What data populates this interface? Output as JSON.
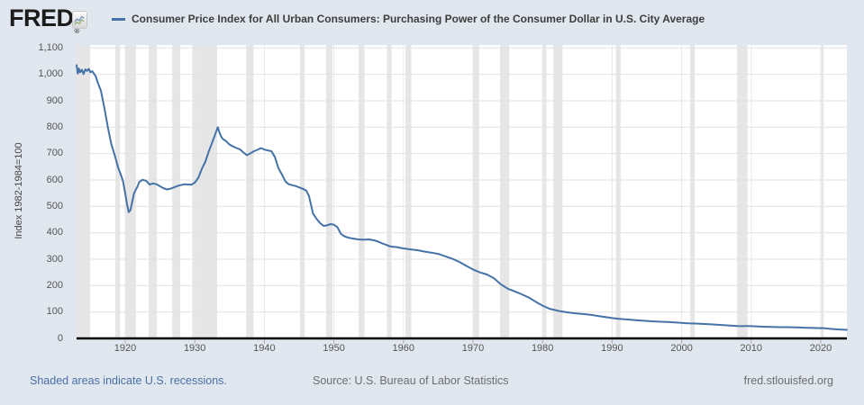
{
  "header": {
    "brand": "FRED",
    "brand_registered": "®",
    "legend_color": "#4572a7"
  },
  "footer": {
    "recession_note": "Shaded areas indicate U.S. recessions.",
    "source": "Source: U.S. Bureau of Labor Statistics",
    "site": "fred.stlouisfed.org"
  },
  "colors": {
    "background": "#e0e7ee",
    "plot_background": "#ffffff",
    "line": "#4572a7",
    "recession_band": "#e6e6e6",
    "gridline_h": "#e2e2e2",
    "gridline_v": "#e9e9e9",
    "axis": "#000000",
    "tick_mark": "#adadad"
  },
  "chart_data": {
    "type": "line",
    "title": "Consumer Price Index for All Urban Consumers: Purchasing Power of the Consumer Dollar in U.S. City Average",
    "xlabel": "",
    "ylabel": "Index 1982-1984=100",
    "ylim": [
      0,
      1100
    ],
    "xlim": [
      1913,
      2023.75
    ],
    "grid": true,
    "legend_position": "top",
    "y_tick_values": [
      0,
      100,
      200,
      300,
      400,
      500,
      600,
      700,
      800,
      900,
      1000,
      1100
    ],
    "y_tick_labels": [
      "0",
      "100",
      "200",
      "300",
      "400",
      "500",
      "600",
      "700",
      "800",
      "900",
      "1,000",
      "1,100"
    ],
    "x_tick_values": [
      1920,
      1930,
      1940,
      1950,
      1960,
      1970,
      1980,
      1990,
      2000,
      2010,
      2020
    ],
    "x_tick_labels": [
      "1920",
      "1930",
      "1940",
      "1950",
      "1960",
      "1970",
      "1980",
      "1990",
      "2000",
      "2010",
      "2020"
    ],
    "recessions": [
      [
        1913.0,
        1914.96
      ],
      [
        1918.58,
        1919.25
      ],
      [
        1920.0,
        1921.54
      ],
      [
        1923.38,
        1924.54
      ],
      [
        1926.75,
        1927.88
      ],
      [
        1929.63,
        1933.21
      ],
      [
        1937.38,
        1938.46
      ],
      [
        1945.13,
        1945.79
      ],
      [
        1948.88,
        1949.79
      ],
      [
        1953.54,
        1954.38
      ],
      [
        1957.63,
        1958.29
      ],
      [
        1960.29,
        1961.13
      ],
      [
        1969.96,
        1970.88
      ],
      [
        1973.88,
        1975.21
      ],
      [
        1980.04,
        1980.54
      ],
      [
        1981.54,
        1982.88
      ],
      [
        1990.54,
        1991.21
      ],
      [
        2001.21,
        2001.88
      ],
      [
        2007.96,
        2009.46
      ],
      [
        2020.08,
        2020.42
      ]
    ],
    "series": [
      {
        "name": "Consumer Price Index for All Urban Consumers: Purchasing Power of the Consumer Dollar in U.S. City Average",
        "color": "#4572a7",
        "points": [
          [
            1913.0,
            1035
          ],
          [
            1913.17,
            1003
          ],
          [
            1913.33,
            1022
          ],
          [
            1913.5,
            1008
          ],
          [
            1913.75,
            1018
          ],
          [
            1914.0,
            1001
          ],
          [
            1914.25,
            1019
          ],
          [
            1914.5,
            1013
          ],
          [
            1914.75,
            1021
          ],
          [
            1915.0,
            1008
          ],
          [
            1915.25,
            1012
          ],
          [
            1915.5,
            1003
          ],
          [
            1915.75,
            993
          ],
          [
            1916.0,
            972
          ],
          [
            1916.5,
            938
          ],
          [
            1917.0,
            872
          ],
          [
            1917.5,
            800
          ],
          [
            1918.0,
            735
          ],
          [
            1918.5,
            692
          ],
          [
            1919.0,
            645
          ],
          [
            1919.33,
            622
          ],
          [
            1919.67,
            596
          ],
          [
            1920.0,
            549
          ],
          [
            1920.25,
            508
          ],
          [
            1920.5,
            478
          ],
          [
            1920.75,
            486
          ],
          [
            1921.0,
            518
          ],
          [
            1921.25,
            549
          ],
          [
            1921.5,
            562
          ],
          [
            1921.75,
            575
          ],
          [
            1922.0,
            592
          ],
          [
            1922.5,
            601
          ],
          [
            1923.0,
            597
          ],
          [
            1923.5,
            583
          ],
          [
            1924.0,
            587
          ],
          [
            1924.5,
            584
          ],
          [
            1925.0,
            576
          ],
          [
            1925.5,
            569
          ],
          [
            1926.0,
            564
          ],
          [
            1926.5,
            567
          ],
          [
            1927.0,
            572
          ],
          [
            1927.5,
            577
          ],
          [
            1928.0,
            581
          ],
          [
            1928.5,
            584
          ],
          [
            1929.0,
            583
          ],
          [
            1929.5,
            582
          ],
          [
            1930.0,
            590
          ],
          [
            1930.5,
            608
          ],
          [
            1931.0,
            642
          ],
          [
            1931.5,
            668
          ],
          [
            1932.0,
            708
          ],
          [
            1932.5,
            742
          ],
          [
            1933.0,
            778
          ],
          [
            1933.3,
            800
          ],
          [
            1933.5,
            783
          ],
          [
            1933.75,
            766
          ],
          [
            1934.0,
            756
          ],
          [
            1934.5,
            747
          ],
          [
            1935.0,
            734
          ],
          [
            1935.5,
            727
          ],
          [
            1936.0,
            721
          ],
          [
            1936.5,
            716
          ],
          [
            1937.0,
            704
          ],
          [
            1937.5,
            694
          ],
          [
            1938.0,
            701
          ],
          [
            1938.5,
            709
          ],
          [
            1939.0,
            714
          ],
          [
            1939.5,
            721
          ],
          [
            1940.0,
            715
          ],
          [
            1940.5,
            712
          ],
          [
            1941.0,
            709
          ],
          [
            1941.5,
            688
          ],
          [
            1942.0,
            646
          ],
          [
            1942.5,
            622
          ],
          [
            1943.0,
            596
          ],
          [
            1943.25,
            589
          ],
          [
            1943.5,
            584
          ],
          [
            1944.0,
            580
          ],
          [
            1944.5,
            577
          ],
          [
            1945.0,
            572
          ],
          [
            1945.5,
            567
          ],
          [
            1946.0,
            560
          ],
          [
            1946.4,
            540
          ],
          [
            1946.75,
            500
          ],
          [
            1947.0,
            472
          ],
          [
            1947.5,
            453
          ],
          [
            1948.0,
            437
          ],
          [
            1948.5,
            426
          ],
          [
            1949.0,
            428
          ],
          [
            1949.5,
            433
          ],
          [
            1950.0,
            431
          ],
          [
            1950.5,
            421
          ],
          [
            1951.0,
            396
          ],
          [
            1951.5,
            387
          ],
          [
            1952.0,
            382
          ],
          [
            1952.5,
            379
          ],
          [
            1953.0,
            377
          ],
          [
            1953.5,
            375
          ],
          [
            1954.0,
            374
          ],
          [
            1954.5,
            374
          ],
          [
            1955.0,
            375
          ],
          [
            1955.5,
            373
          ],
          [
            1956.0,
            370
          ],
          [
            1956.5,
            365
          ],
          [
            1957.0,
            359
          ],
          [
            1957.5,
            355
          ],
          [
            1958.0,
            349
          ],
          [
            1958.5,
            347
          ],
          [
            1959.0,
            346
          ],
          [
            1959.5,
            343
          ],
          [
            1960.0,
            341
          ],
          [
            1961.0,
            337
          ],
          [
            1962.0,
            334
          ],
          [
            1963.0,
            329
          ],
          [
            1964.0,
            325
          ],
          [
            1965.0,
            320
          ],
          [
            1966.0,
            311
          ],
          [
            1967.0,
            302
          ],
          [
            1968.0,
            290
          ],
          [
            1969.0,
            275
          ],
          [
            1970.0,
            261
          ],
          [
            1971.0,
            250
          ],
          [
            1972.0,
            242
          ],
          [
            1973.0,
            228
          ],
          [
            1974.0,
            205
          ],
          [
            1975.0,
            188
          ],
          [
            1976.0,
            178
          ],
          [
            1977.0,
            167
          ],
          [
            1978.0,
            155
          ],
          [
            1979.0,
            139
          ],
          [
            1980.0,
            124
          ],
          [
            1980.5,
            118
          ],
          [
            1981.0,
            112
          ],
          [
            1981.5,
            109
          ],
          [
            1982.0,
            106
          ],
          [
            1982.5,
            103
          ],
          [
            1983.0,
            101
          ],
          [
            1984.0,
            97
          ],
          [
            1985.0,
            94
          ],
          [
            1986.0,
            92
          ],
          [
            1987.0,
            89
          ],
          [
            1988.0,
            85
          ],
          [
            1989.0,
            81
          ],
          [
            1990.0,
            77
          ],
          [
            1991.0,
            74
          ],
          [
            1992.0,
            72
          ],
          [
            1993.0,
            70
          ],
          [
            1994.0,
            68
          ],
          [
            1995.0,
            66
          ],
          [
            1996.0,
            64.4
          ],
          [
            1997.0,
            62.9
          ],
          [
            1998.0,
            61.9
          ],
          [
            1999.0,
            60.6
          ],
          [
            2000.0,
            58.6
          ],
          [
            2001.0,
            57.0
          ],
          [
            2002.0,
            56.1
          ],
          [
            2003.0,
            54.9
          ],
          [
            2004.0,
            53.4
          ],
          [
            2005.0,
            51.7
          ],
          [
            2006.0,
            50.1
          ],
          [
            2007.0,
            48.7
          ],
          [
            2008.0,
            46.9
          ],
          [
            2008.7,
            46.3
          ],
          [
            2009.0,
            47.0
          ],
          [
            2009.5,
            46.8
          ],
          [
            2010.0,
            46.4
          ],
          [
            2011.0,
            44.9
          ],
          [
            2012.0,
            44.0
          ],
          [
            2013.0,
            43.4
          ],
          [
            2014.0,
            42.7
          ],
          [
            2015.0,
            42.6
          ],
          [
            2016.0,
            42.1
          ],
          [
            2017.0,
            41.2
          ],
          [
            2018.0,
            40.2
          ],
          [
            2019.0,
            39.5
          ],
          [
            2020.0,
            39.0
          ],
          [
            2020.3,
            39.3
          ],
          [
            2021.0,
            37.3
          ],
          [
            2022.0,
            34.6
          ],
          [
            2023.0,
            33.2
          ],
          [
            2023.75,
            32.5
          ]
        ]
      }
    ]
  }
}
